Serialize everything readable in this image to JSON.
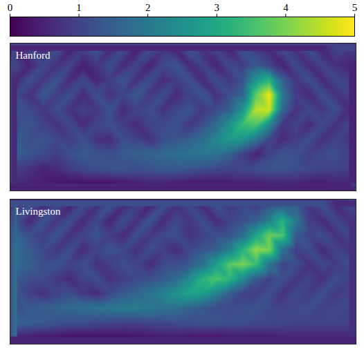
{
  "chart_data": {
    "type": "heatmap",
    "color": "viridis",
    "tick_labels": false,
    "colorbar": {
      "range": [
        0,
        5
      ],
      "ticks": [
        0,
        1,
        2,
        3,
        4,
        5
      ]
    },
    "panels": [
      {
        "title": "Hanford",
        "cells": [
          [
            0.4,
            1.0,
            0.6,
            1.2,
            0.5,
            0.9,
            1.3,
            0.6,
            1.1,
            0.5,
            1.2,
            0.8,
            0.5,
            1.3,
            0.7,
            1.0,
            0.5,
            1.2,
            0.9,
            0.6,
            1.1,
            0.7,
            1.2,
            0.5,
            1.0,
            0.8
          ],
          [
            1.0,
            0.5,
            1.1,
            0.7,
            1.0,
            0.4,
            0.8,
            1.2,
            0.6,
            1.0,
            0.5,
            1.1,
            1.3,
            0.6,
            1.0,
            0.5,
            1.1,
            0.9,
            1.4,
            1.0,
            0.5,
            1.1,
            0.6,
            1.0,
            0.7,
            0.5
          ],
          [
            0.6,
            1.2,
            0.8,
            1.3,
            0.6,
            1.1,
            0.5,
            0.9,
            1.3,
            0.7,
            1.2,
            0.6,
            0.9,
            1.2,
            0.6,
            1.2,
            0.8,
            1.3,
            2.6,
            3.2,
            1.5,
            0.8,
            1.2,
            0.6,
            1.1,
            0.9
          ],
          [
            1.1,
            0.7,
            1.4,
            0.9,
            1.2,
            0.6,
            1.2,
            0.7,
            1.0,
            1.4,
            0.8,
            1.2,
            0.6,
            1.0,
            1.3,
            0.7,
            1.2,
            1.6,
            3.8,
            4.9,
            2.0,
            0.9,
            0.6,
            1.2,
            0.7,
            1.0
          ],
          [
            1.3,
            1.1,
            0.8,
            1.2,
            0.7,
            1.0,
            0.8,
            1.3,
            0.6,
            1.0,
            1.2,
            0.7,
            1.1,
            1.3,
            0.8,
            1.1,
            1.5,
            2.6,
            4.5,
            4.6,
            1.6,
            0.7,
            1.1,
            0.8,
            1.2,
            0.6
          ],
          [
            1.2,
            1.3,
            1.0,
            0.7,
            1.1,
            0.6,
            1.0,
            1.2,
            0.9,
            0.6,
            1.0,
            1.1,
            1.2,
            0.8,
            1.2,
            1.7,
            2.5,
            3.4,
            3.6,
            2.4,
            0.8,
            1.0,
            0.6,
            1.1,
            0.7,
            1.0
          ],
          [
            1.4,
            1.2,
            1.3,
            1.1,
            0.9,
            1.2,
            0.7,
            0.6,
            1.2,
            1.0,
            0.7,
            1.2,
            1.3,
            1.5,
            1.8,
            2.3,
            2.7,
            2.6,
            1.9,
            1.1,
            0.6,
            0.9,
            1.2,
            0.7,
            1.0,
            0.8
          ],
          [
            1.5,
            1.3,
            1.1,
            0.9,
            1.2,
            1.4,
            1.3,
            1.2,
            1.4,
            1.5,
            1.6,
            1.7,
            1.8,
            1.9,
            2.0,
            1.9,
            1.6,
            1.0,
            0.5,
            1.0,
            1.3,
            1.2,
            0.9,
            1.1,
            1.2,
            1.0
          ],
          [
            0.9,
            0.7,
            0.5,
            0.6,
            0.9,
            1.1,
            1.2,
            1.3,
            1.3,
            1.2,
            1.3,
            1.4,
            1.4,
            1.3,
            1.2,
            1.1,
            1.0,
            1.1,
            1.2,
            1.3,
            1.3,
            1.2,
            1.1,
            1.0,
            1.0,
            0.9
          ],
          [
            0.6,
            0.5,
            0.4,
            0.3,
            0.3,
            0.2,
            0.2,
            0.2,
            0.3,
            0.4,
            0.5,
            0.5,
            0.4,
            0.3,
            0.3,
            0.3,
            0.4,
            0.4,
            0.4,
            0.5,
            0.5,
            0.5,
            0.4,
            0.4,
            0.5,
            0.5
          ]
        ]
      },
      {
        "title": "Livingston",
        "cells": [
          [
            0.8,
            1.3,
            0.6,
            1.1,
            0.5,
            1.2,
            0.7,
            1.3,
            0.6,
            1.0,
            0.5,
            1.2,
            0.7,
            1.1,
            0.6,
            1.3,
            0.8,
            1.1,
            0.9,
            1.3,
            1.6,
            1.5,
            0.8,
            1.2,
            0.6,
            1.0
          ],
          [
            1.2,
            0.6,
            1.3,
            0.8,
            1.2,
            0.6,
            1.1,
            0.5,
            1.2,
            0.7,
            1.3,
            0.6,
            1.1,
            0.8,
            1.2,
            0.6,
            1.0,
            1.2,
            1.5,
            2.2,
            3.2,
            2.0,
            0.9,
            0.6,
            1.1,
            0.7
          ],
          [
            1.6,
            1.2,
            0.9,
            1.3,
            0.7,
            1.0,
            1.3,
            0.9,
            0.6,
            1.2,
            0.8,
            1.1,
            1.2,
            0.7,
            1.0,
            1.2,
            1.3,
            1.8,
            2.9,
            3.9,
            3.6,
            1.4,
            1.0,
            1.2,
            0.7,
            1.1
          ],
          [
            1.8,
            1.4,
            1.1,
            0.8,
            1.2,
            0.6,
            1.0,
            1.3,
            1.1,
            0.7,
            1.2,
            0.9,
            0.6,
            1.1,
            1.3,
            1.5,
            2.2,
            3.2,
            4.2,
            4.0,
            1.8,
            0.9,
            1.2,
            0.6,
            1.0,
            0.8
          ],
          [
            1.7,
            1.5,
            1.2,
            1.3,
            1.0,
            1.2,
            0.7,
            0.9,
            1.2,
            1.0,
            0.6,
            1.1,
            1.2,
            1.4,
            1.9,
            2.8,
            3.7,
            4.0,
            3.4,
            1.9,
            1.0,
            1.2,
            0.7,
            1.1,
            0.9,
            1.2
          ],
          [
            1.4,
            1.2,
            1.1,
            0.8,
            0.6,
            1.0,
            1.2,
            0.7,
            0.9,
            1.1,
            1.2,
            1.4,
            1.7,
            2.4,
            3.2,
            3.6,
            3.3,
            2.4,
            1.4,
            1.0,
            1.2,
            0.8,
            1.0,
            0.7,
            1.2,
            1.0
          ],
          [
            1.3,
            0.9,
            0.7,
            1.0,
            1.2,
            0.8,
            0.6,
            1.1,
            1.4,
            1.6,
            1.9,
            2.2,
            2.6,
            2.9,
            2.8,
            2.2,
            1.5,
            1.0,
            0.9,
            1.2,
            0.7,
            1.1,
            0.9,
            1.2,
            0.8,
            1.0
          ],
          [
            1.2,
            1.4,
            1.5,
            1.6,
            1.7,
            1.8,
            1.9,
            2.0,
            2.1,
            2.1,
            2.0,
            1.9,
            1.8,
            1.6,
            1.4,
            1.2,
            1.1,
            1.2,
            1.3,
            1.1,
            1.0,
            1.1,
            1.2,
            1.0,
            1.1,
            1.0
          ],
          [
            1.6,
            1.5,
            1.4,
            1.3,
            1.2,
            1.2,
            1.1,
            1.1,
            1.0,
            1.0,
            1.1,
            1.1,
            1.2,
            1.2,
            1.3,
            1.3,
            1.2,
            1.2,
            1.1,
            1.1,
            1.1,
            1.0,
            1.0,
            1.0,
            1.0,
            1.0
          ],
          [
            0.5,
            0.4,
            0.3,
            0.3,
            0.2,
            0.2,
            0.2,
            0.2,
            0.2,
            0.3,
            0.3,
            0.4,
            0.4,
            0.3,
            0.3,
            0.3,
            0.4,
            0.4,
            0.4,
            0.4,
            0.5,
            0.5,
            0.5,
            0.5,
            0.5,
            0.5
          ]
        ]
      }
    ]
  }
}
